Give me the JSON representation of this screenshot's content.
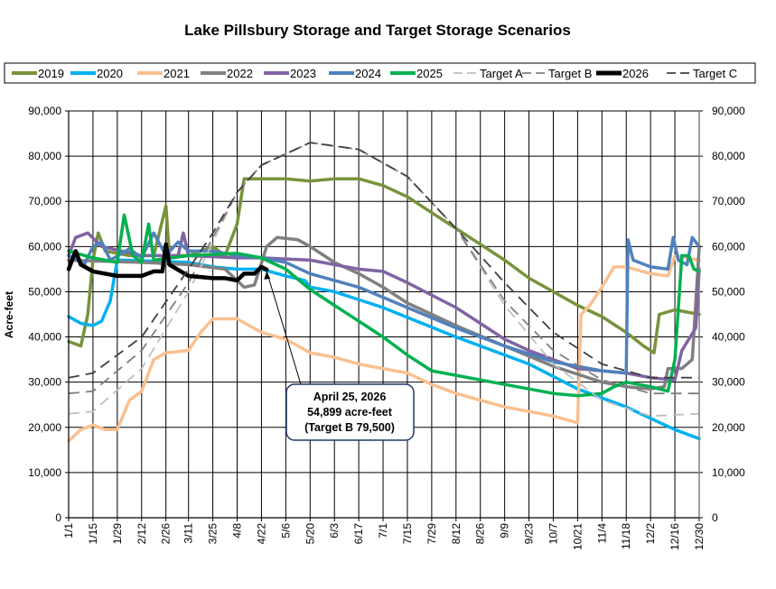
{
  "chart_data": {
    "type": "line",
    "title": "Lake Pillsbury Storage and Target Storage Scenarios",
    "ylabel": "Acre-feet",
    "xlabel": "",
    "ylim": [
      0,
      90000
    ],
    "yticks": [
      "0",
      "10,000",
      "20,000",
      "30,000",
      "40,000",
      "50,000",
      "60,000",
      "70,000",
      "80,000",
      "90,000"
    ],
    "yticks_right": [
      "0",
      "10,000",
      "20,000",
      "30,000",
      "40,000",
      "50,000",
      "60,000",
      "70,000",
      "80,000",
      "90,000"
    ],
    "xticks": [
      "1/1",
      "1/15",
      "1/29",
      "2/12",
      "2/26",
      "3/11",
      "3/25",
      "4/8",
      "4/22",
      "5/6",
      "5/20",
      "6/3",
      "6/17",
      "7/1",
      "7/15",
      "7/29",
      "8/12",
      "8/26",
      "9/9",
      "9/23",
      "10/7",
      "10/21",
      "11/4",
      "11/18",
      "12/2",
      "12/16",
      "12/30"
    ],
    "grid": true,
    "legend_position": "top",
    "series": [
      {
        "name": "2019",
        "color": "#77933C",
        "dash": false,
        "x": [
          "1/1",
          "1/8",
          "1/12",
          "1/15",
          "1/18",
          "1/22",
          "2/5",
          "2/19",
          "2/26",
          "2/28",
          "3/11",
          "3/25",
          "4/1",
          "4/8",
          "4/12",
          "5/6",
          "5/20",
          "6/3",
          "6/17",
          "7/1",
          "7/15",
          "7/29",
          "8/12",
          "8/26",
          "9/9",
          "9/23",
          "10/7",
          "10/21",
          "11/4",
          "11/18",
          "11/28",
          "12/4",
          "12/7",
          "12/16",
          "12/30"
        ],
        "y": [
          39000,
          38000,
          45000,
          57000,
          63000,
          59000,
          58000,
          58000,
          69000,
          58000,
          58000,
          60000,
          58000,
          65000,
          75000,
          75000,
          74500,
          75000,
          75000,
          73500,
          71000,
          67500,
          64000,
          60500,
          57000,
          53000,
          50000,
          47000,
          44500,
          41000,
          38000,
          36500,
          45000,
          46000,
          45000
        ]
      },
      {
        "name": "2020",
        "color": "#00B0F0",
        "dash": false,
        "x": [
          "1/1",
          "1/8",
          "1/15",
          "1/20",
          "1/25",
          "1/29",
          "2/1",
          "3/11",
          "3/25",
          "4/8",
          "4/22",
          "5/6",
          "5/17",
          "5/20",
          "6/3",
          "7/1",
          "8/12",
          "9/23",
          "10/21",
          "11/4",
          "11/18",
          "12/2",
          "12/16",
          "12/30"
        ],
        "y": [
          44500,
          43000,
          42500,
          43500,
          48000,
          57000,
          57000,
          56500,
          55500,
          55000,
          55000,
          53500,
          52500,
          51000,
          50000,
          46500,
          40000,
          34000,
          28500,
          26500,
          24500,
          22000,
          19500,
          17500
        ]
      },
      {
        "name": "2021",
        "color": "#FAC090",
        "dash": false,
        "x": [
          "1/1",
          "1/8",
          "1/15",
          "1/22",
          "1/29",
          "2/5",
          "2/12",
          "2/19",
          "2/26",
          "3/11",
          "3/18",
          "3/25",
          "4/8",
          "4/22",
          "5/6",
          "5/20",
          "6/3",
          "6/17",
          "7/15",
          "7/29",
          "8/12",
          "8/26",
          "9/9",
          "9/23",
          "10/7",
          "10/21",
          "10/23",
          "10/28",
          "11/4",
          "11/11",
          "11/18",
          "12/2",
          "12/12",
          "12/16",
          "12/30"
        ],
        "y": [
          17000,
          19500,
          20500,
          19500,
          19500,
          26000,
          28000,
          35000,
          36500,
          37000,
          41000,
          44000,
          44000,
          41000,
          39500,
          36500,
          35500,
          34000,
          32000,
          29500,
          27500,
          26000,
          24500,
          23500,
          22500,
          21000,
          45000,
          47000,
          51000,
          55500,
          55500,
          54000,
          53500,
          58000,
          57000
        ]
      },
      {
        "name": "2022",
        "color": "#808080",
        "dash": false,
        "x": [
          "1/1",
          "2/12",
          "3/11",
          "4/1",
          "4/12",
          "4/18",
          "4/25",
          "5/1",
          "5/13",
          "5/20",
          "6/3",
          "6/17",
          "7/1",
          "7/15",
          "8/12",
          "9/9",
          "10/7",
          "11/4",
          "11/18",
          "12/2",
          "12/10",
          "12/12",
          "12/20",
          "12/26",
          "12/30"
        ],
        "y": [
          57000,
          56500,
          56000,
          55000,
          51000,
          51500,
          60000,
          62000,
          61500,
          60000,
          56500,
          54000,
          51000,
          47500,
          42500,
          38000,
          33500,
          30000,
          29000,
          28500,
          29000,
          33000,
          33000,
          35000,
          60000
        ]
      },
      {
        "name": "2023",
        "color": "#8064A2",
        "dash": false,
        "x": [
          "1/1",
          "1/5",
          "1/12",
          "1/20",
          "2/12",
          "3/5",
          "3/8",
          "3/11",
          "4/8",
          "4/22",
          "5/20",
          "6/3",
          "6/17",
          "7/1",
          "7/15",
          "8/12",
          "8/26",
          "9/9",
          "9/23",
          "10/7",
          "10/21",
          "11/4",
          "11/18",
          "12/2",
          "12/16",
          "12/20",
          "12/28",
          "12/30"
        ],
        "y": [
          58000,
          62000,
          63000,
          60000,
          58000,
          58000,
          63000,
          58000,
          57500,
          57500,
          57000,
          56000,
          55000,
          54500,
          52000,
          46500,
          43000,
          39500,
          37000,
          35000,
          33000,
          32500,
          32000,
          31000,
          30500,
          37000,
          42000,
          55000
        ]
      },
      {
        "name": "2024",
        "color": "#4F81BD",
        "dash": false,
        "x": [
          "1/1",
          "1/10",
          "1/15",
          "1/20",
          "1/25",
          "2/5",
          "2/12",
          "2/19",
          "2/26",
          "3/5",
          "3/11",
          "3/25",
          "4/8",
          "4/22",
          "5/6",
          "5/20",
          "6/17",
          "7/15",
          "8/12",
          "9/9",
          "10/7",
          "11/4",
          "11/18",
          "11/19",
          "11/22",
          "12/2",
          "12/12",
          "12/15",
          "12/18",
          "12/23",
          "12/26",
          "12/30"
        ],
        "y": [
          58000,
          56000,
          60000,
          61000,
          57000,
          59500,
          57500,
          63000,
          58000,
          61000,
          59000,
          59000,
          58000,
          57500,
          56500,
          54000,
          51000,
          46500,
          42000,
          38000,
          34500,
          32500,
          32000,
          61500,
          57000,
          55500,
          55000,
          62000,
          57000,
          56000,
          62000,
          60000
        ]
      },
      {
        "name": "2025",
        "color": "#00B050",
        "dash": false,
        "x": [
          "1/1",
          "1/15",
          "1/29",
          "2/2",
          "2/7",
          "2/12",
          "2/16",
          "2/19",
          "3/11",
          "4/8",
          "4/22",
          "5/6",
          "5/20",
          "6/3",
          "6/17",
          "7/1",
          "7/15",
          "7/29",
          "8/12",
          "8/26",
          "9/9",
          "9/23",
          "10/7",
          "10/21",
          "11/4",
          "11/11",
          "11/18",
          "12/2",
          "12/12",
          "12/16",
          "12/20",
          "12/24",
          "12/27",
          "12/30"
        ],
        "y": [
          59000,
          57500,
          56500,
          67000,
          58000,
          56500,
          65000,
          57000,
          58000,
          58500,
          57500,
          55000,
          50500,
          47000,
          43500,
          40000,
          36000,
          32500,
          31500,
          30500,
          29500,
          28500,
          27500,
          27000,
          27500,
          29000,
          30000,
          29000,
          28000,
          35000,
          58000,
          58000,
          55000,
          54500
        ]
      },
      {
        "name": "Target A",
        "color": "#BFBFBF",
        "dash": true,
        "x": [
          "1/1",
          "1/15",
          "2/12",
          "3/11",
          "3/25",
          "4/8",
          "4/22",
          "5/20",
          "6/17",
          "7/15",
          "8/12",
          "9/9",
          "10/7",
          "11/4",
          "12/2",
          "12/30"
        ],
        "y": [
          23000,
          23500,
          33000,
          50000,
          61000,
          72000,
          78000,
          83000,
          81500,
          75500,
          64000,
          47000,
          34000,
          26000,
          22500,
          23000
        ]
      },
      {
        "name": "Target B",
        "color": "#808080",
        "dash": true,
        "x": [
          "1/1",
          "1/15",
          "2/12",
          "3/11",
          "3/25",
          "4/8",
          "4/22",
          "5/20",
          "6/17",
          "7/15",
          "8/12",
          "9/9",
          "10/7",
          "11/4",
          "12/2",
          "12/30"
        ],
        "y": [
          27500,
          28000,
          37000,
          52000,
          62000,
          72000,
          78000,
          83000,
          81500,
          75500,
          64000,
          48000,
          37000,
          30500,
          27500,
          27500
        ]
      },
      {
        "name": "2026",
        "color": "#000000",
        "dash": false,
        "x": [
          "1/1",
          "1/5",
          "1/8",
          "1/15",
          "1/29",
          "2/12",
          "2/19",
          "2/24",
          "2/26",
          "2/28",
          "3/11",
          "3/25",
          "4/1",
          "4/8",
          "4/12",
          "4/18",
          "4/22",
          "4/25"
        ],
        "y": [
          55000,
          59000,
          56000,
          54500,
          53500,
          53500,
          54500,
          54500,
          60500,
          56000,
          53500,
          53000,
          53000,
          52500,
          54000,
          54000,
          55500,
          54899
        ]
      },
      {
        "name": "Target C",
        "color": "#404040",
        "dash": true,
        "x": [
          "1/1",
          "1/15",
          "2/12",
          "3/11",
          "3/25",
          "4/8",
          "4/22",
          "5/20",
          "6/17",
          "7/15",
          "8/12",
          "9/9",
          "10/7",
          "11/4",
          "12/2",
          "12/30"
        ],
        "y": [
          31000,
          32000,
          40000,
          55000,
          63000,
          72000,
          78000,
          83000,
          81500,
          75500,
          64000,
          52000,
          41000,
          34000,
          31000,
          31000
        ]
      }
    ],
    "annotation": {
      "lines": [
        "April 25, 2026",
        "54,899 acre-feet",
        "(Target B 79,500)"
      ],
      "point_x": "4/25",
      "point_y": 54899
    }
  }
}
